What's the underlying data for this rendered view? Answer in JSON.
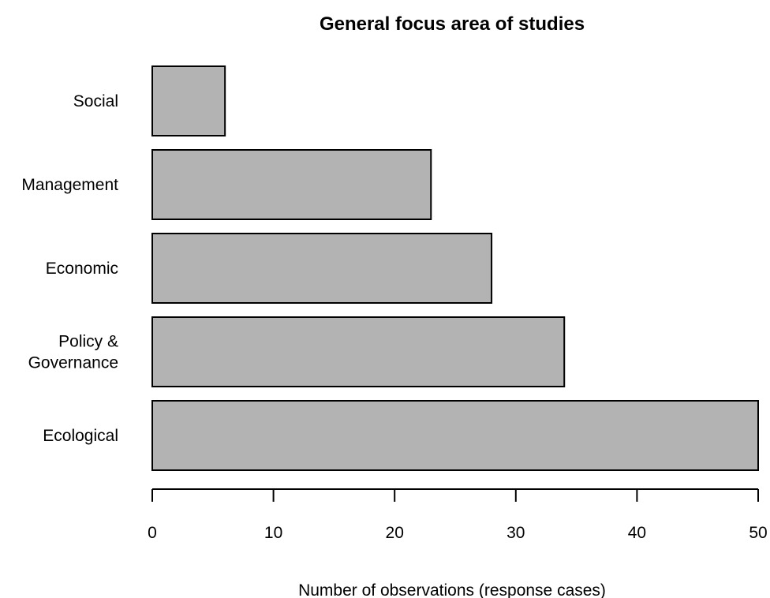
{
  "chart_data": {
    "type": "bar",
    "orientation": "horizontal",
    "title": "General focus area of studies",
    "xlabel": "Number of observations (response cases)",
    "ylabel": "",
    "xlim": [
      0,
      50
    ],
    "xticks": [
      0,
      10,
      20,
      30,
      40,
      50
    ],
    "categories": [
      {
        "label": [
          "Social"
        ],
        "value": 6
      },
      {
        "label": [
          "Management"
        ],
        "value": 23
      },
      {
        "label": [
          "Economic"
        ],
        "value": 28
      },
      {
        "label": [
          "Policy &",
          "Governance"
        ],
        "value": 34
      },
      {
        "label": [
          "Ecological"
        ],
        "value": 50
      }
    ],
    "bar_color": "#b3b3b3",
    "edge_color": "#000000",
    "grid": false,
    "legend": "none"
  }
}
